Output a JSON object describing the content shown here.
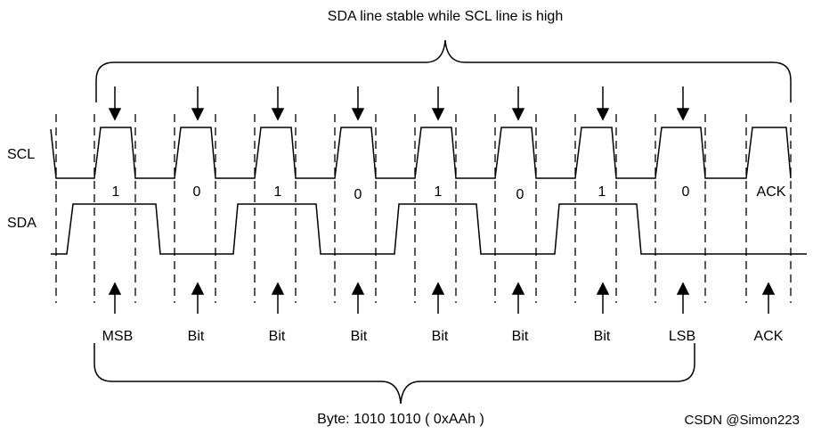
{
  "top_caption": "SDA line stable while SCL line is high",
  "bottom_caption": "Byte: 1010 1010 ( 0xAAh )",
  "signals": {
    "scl": "SCL",
    "sda": "SDA"
  },
  "bits": [
    {
      "value": "1",
      "label": "MSB"
    },
    {
      "value": "0",
      "label": "Bit"
    },
    {
      "value": "1",
      "label": "Bit"
    },
    {
      "value": "0",
      "label": "Bit"
    },
    {
      "value": "1",
      "label": "Bit"
    },
    {
      "value": "0",
      "label": "Bit"
    },
    {
      "value": "1",
      "label": "Bit"
    },
    {
      "value": "0",
      "label": "LSB"
    }
  ],
  "ack": {
    "value": "ACK",
    "label": "ACK"
  },
  "watermark": "CSDN @Simon223"
}
